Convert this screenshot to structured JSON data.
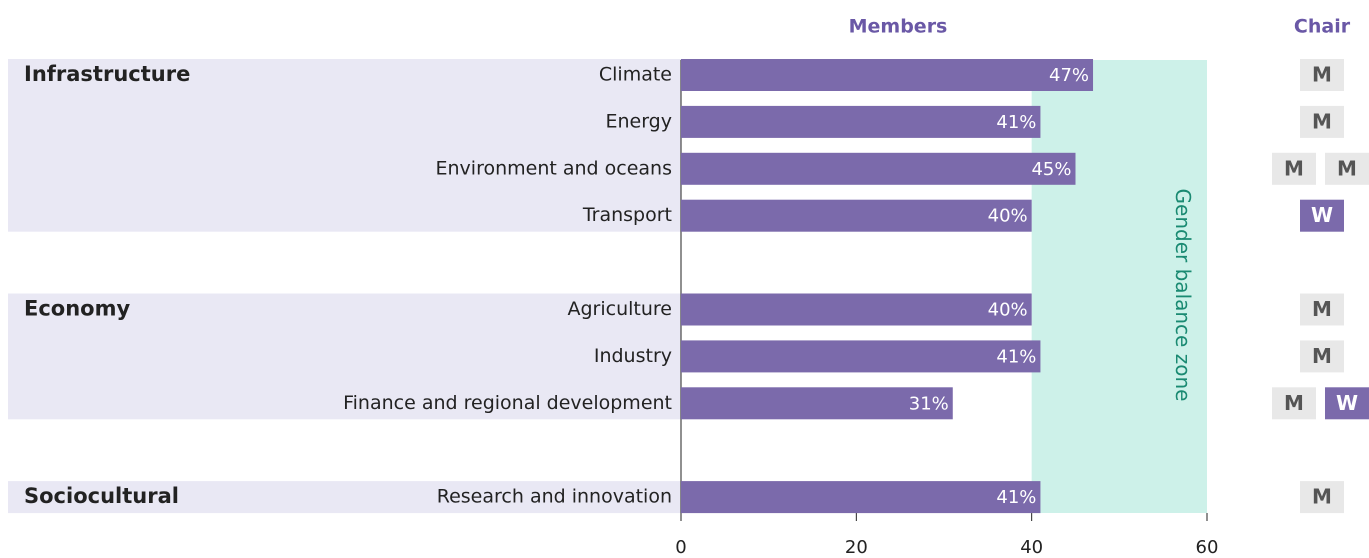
{
  "chart_data": {
    "type": "bar",
    "members_header": "Members",
    "chair_header": "Chair",
    "color": "#7b6aab",
    "xlim": [
      0,
      60
    ],
    "xticks": [
      0,
      20,
      40,
      60
    ],
    "zone": {
      "from": 40,
      "to": 60,
      "label": "Gender balance zone",
      "color": "#cdf1e9",
      "text_color": "#1a8a72"
    },
    "groups": [
      {
        "name": "Infrastructure",
        "categories": [
          "Climate",
          "Energy",
          "Environment and oceans",
          "Transport"
        ],
        "values": [
          47,
          41,
          45,
          40
        ],
        "value_labels": [
          "47%",
          "41%",
          "45%",
          "40%"
        ],
        "chairs": [
          [
            "M"
          ],
          [
            "M"
          ],
          [
            "M",
            "M"
          ],
          [
            "W"
          ]
        ]
      },
      {
        "name": "Economy",
        "categories": [
          "Agriculture",
          "Industry",
          "Finance and regional development"
        ],
        "values": [
          40,
          41,
          31
        ],
        "value_labels": [
          "40%",
          "41%",
          "31%"
        ],
        "chairs": [
          [
            "M"
          ],
          [
            "M"
          ],
          [
            "M",
            "W"
          ]
        ]
      },
      {
        "name": "Sociocultural",
        "categories": [
          "Research and innovation"
        ],
        "values": [
          41
        ],
        "value_labels": [
          "41%"
        ],
        "chairs": [
          [
            "M"
          ]
        ]
      }
    ]
  }
}
